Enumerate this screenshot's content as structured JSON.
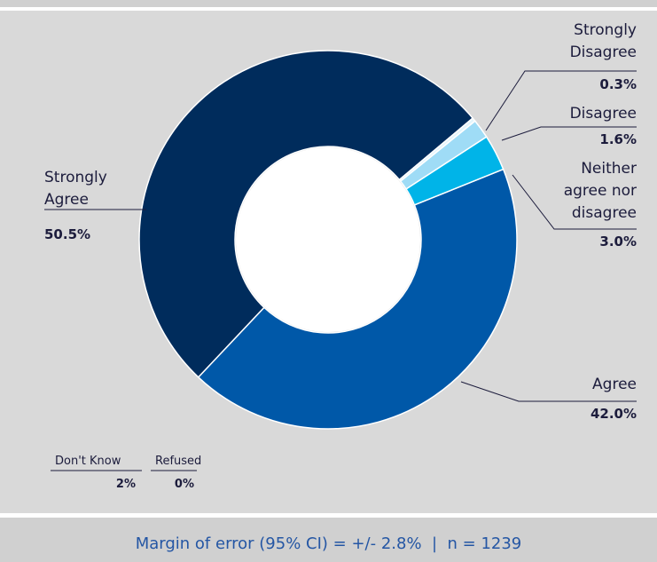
{
  "chart_data": {
    "type": "donut",
    "categories": [
      "Strongly Agree",
      "Agree",
      "Neither agree nor disagree",
      "Disagree",
      "Strongly Disagree"
    ],
    "values": [
      50.5,
      42.0,
      3.0,
      1.6,
      0.3
    ],
    "value_labels": [
      "50.5%",
      "42.0%",
      "3.0%",
      "1.6%",
      "0.3%"
    ],
    "colors": [
      "#002c5c",
      "#0058a8",
      "#00b4e8",
      "#9fdcf6",
      "#e4f5fc"
    ],
    "extras": {
      "categories": [
        "Don't Know",
        "Refused"
      ],
      "values": [
        2,
        0
      ],
      "value_labels": [
        "2%",
        "0%"
      ]
    },
    "footer": "Margin of error (95% CI) = +/- 2.8%  |  n = 1239"
  }
}
